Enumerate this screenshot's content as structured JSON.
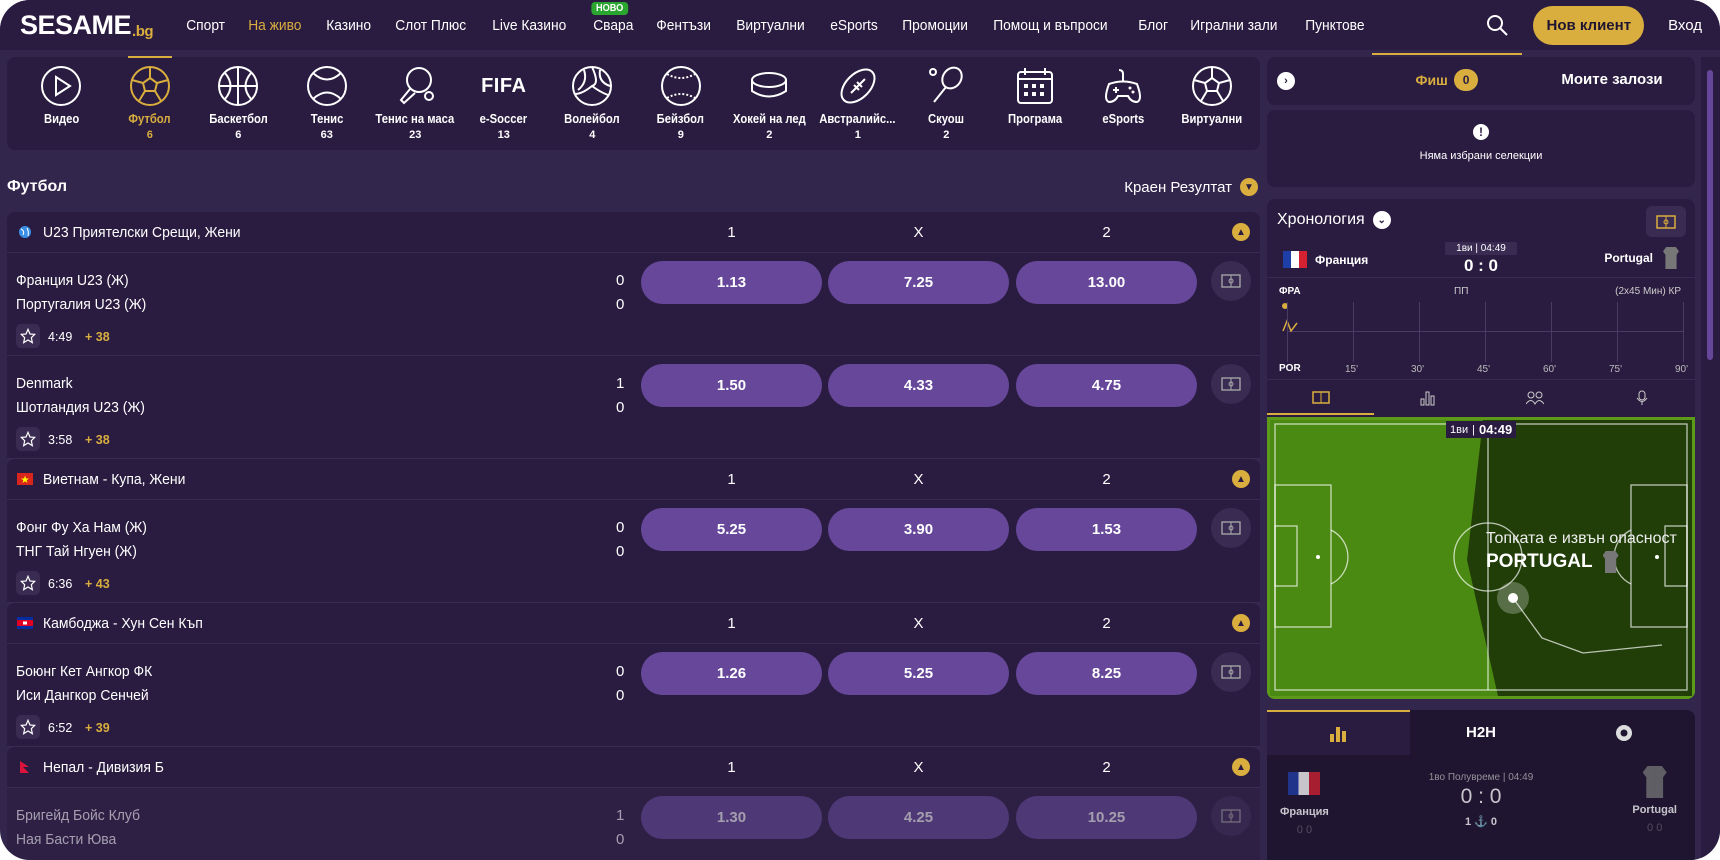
{
  "brand": {
    "name": "SESAME",
    "suffix": ".bg"
  },
  "nav": {
    "items": [
      {
        "label": "Спорт"
      },
      {
        "label": "На живо",
        "active": true
      },
      {
        "label": "Казино"
      },
      {
        "label": "Слот Плюс"
      },
      {
        "label": "Live Казино"
      },
      {
        "label": "Свара",
        "badge": "НОВО"
      },
      {
        "label": "Фентъзи"
      },
      {
        "label": "Виртуални"
      },
      {
        "label": "eSports"
      },
      {
        "label": "Промоции"
      },
      {
        "label": "Помощ и въпроси"
      },
      {
        "label": "Блог"
      },
      {
        "label": "Игрални зали"
      },
      {
        "label": "Пунктове"
      }
    ],
    "new_client": "Нов клиент",
    "login": "Вход",
    "search_icon": "search-icon"
  },
  "sports": [
    {
      "label": "Видео",
      "count": "",
      "icon": "play"
    },
    {
      "label": "Футбол",
      "count": "6",
      "icon": "soccer",
      "active": true
    },
    {
      "label": "Баскетбол",
      "count": "6",
      "icon": "basketball"
    },
    {
      "label": "Тенис",
      "count": "63",
      "icon": "tennis"
    },
    {
      "label": "Тенис на маса",
      "count": "23",
      "icon": "pingpong"
    },
    {
      "label": "e-Soccer",
      "count": "13",
      "icon": "fifa",
      "icon_text": "FIFA"
    },
    {
      "label": "Волейбол",
      "count": "4",
      "icon": "volleyball"
    },
    {
      "label": "Бейзбол",
      "count": "9",
      "icon": "baseball"
    },
    {
      "label": "Хокей на лед",
      "count": "2",
      "icon": "puck"
    },
    {
      "label": "Австралийс...",
      "count": "1",
      "icon": "rugby"
    },
    {
      "label": "Скуош",
      "count": "2",
      "icon": "squash"
    },
    {
      "label": "Програма",
      "count": "",
      "icon": "calendar"
    },
    {
      "label": "eSports",
      "count": "",
      "icon": "gamepad"
    },
    {
      "label": "Виртуални",
      "count": "",
      "icon": "soccer"
    }
  ],
  "section": {
    "title": "Футбол",
    "market": "Краен Резултат"
  },
  "leagues": [
    {
      "name": "U23 Приятелски Срещи, Жени",
      "flag": "world",
      "headers": [
        "1",
        "X",
        "2"
      ],
      "matches": [
        {
          "home": "Франция U23 (Ж)",
          "away": "Португалия U23 (Ж)",
          "hs": "0",
          "as": "0",
          "odds": [
            "1.13",
            "7.25",
            "13.00"
          ],
          "time": "4:49",
          "more": "+ 38"
        },
        {
          "home": "Denmark",
          "away": "Шотландия U23 (Ж)",
          "hs": "1",
          "as": "0",
          "odds": [
            "1.50",
            "4.33",
            "4.75"
          ],
          "time": "3:58",
          "more": "+ 38"
        }
      ]
    },
    {
      "name": "Виетнам - Купа, Жени",
      "flag": "vietnam",
      "headers": [
        "1",
        "X",
        "2"
      ],
      "matches": [
        {
          "home": "Фонг Фу Ха Нам (Ж)",
          "away": "ТНГ Тай Нгуен (Ж)",
          "hs": "0",
          "as": "0",
          "odds": [
            "5.25",
            "3.90",
            "1.53"
          ],
          "time": "6:36",
          "more": "+ 43"
        }
      ]
    },
    {
      "name": "Камбоджа - Хун Сен Къп",
      "flag": "cambodia",
      "headers": [
        "1",
        "X",
        "2"
      ],
      "matches": [
        {
          "home": "Боюнг Кет Ангкор ФК",
          "away": "Иси Дангкор Сенчей",
          "hs": "0",
          "as": "0",
          "odds": [
            "1.26",
            "5.25",
            "8.25"
          ],
          "time": "6:52",
          "more": "+ 39"
        }
      ]
    },
    {
      "name": "Непал - Дивизия Б",
      "flag": "nepal",
      "headers": [
        "1",
        "X",
        "2"
      ],
      "matches": [
        {
          "home": "Бригейд Бойс Клуб",
          "away": "Ная Басти Юва",
          "hs": "1",
          "as": "0",
          "odds": [
            "1.30",
            "4.25",
            "10.25"
          ],
          "time": "",
          "more": ""
        }
      ]
    }
  ],
  "slip": {
    "tab": "Фиш",
    "count": "0",
    "my_bets": "Моите залози",
    "empty": "Няма избрани селекции"
  },
  "chrono": {
    "title": "Хронология",
    "home": "Франция",
    "away": "Portugal",
    "period": "1ви | 04:49",
    "score": "0 : 0",
    "home_code": "ФРА",
    "away_code": "POR",
    "mid_label": "ПП",
    "format": "(2x45 Мин) КР",
    "ticks": [
      "15'",
      "30'",
      "45'",
      "60'",
      "75'",
      "90'"
    ],
    "pitch": {
      "period": "1ви",
      "time": "04:49",
      "event": "Топката е извън опасност",
      "team": "PORTUGAL"
    }
  },
  "bottom": {
    "tab_h2h": "H2H",
    "period": "1во Полувреме | 04:49",
    "score": "0 : 0",
    "home": "Франция",
    "away": "Portugal",
    "corners_home": "1",
    "corners_away": "0",
    "cards": [
      "0",
      "0",
      "0",
      "0"
    ]
  },
  "colors": {
    "accent": "#d9ae3e",
    "odds": "#66479a",
    "bg": "#2a1c40"
  }
}
